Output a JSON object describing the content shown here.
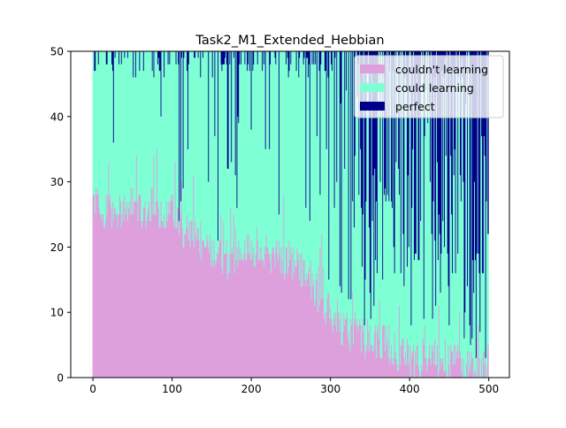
{
  "chart_data": {
    "type": "bar",
    "stacked": true,
    "title": "Task2_M1_Extended_Hebbian",
    "xlabel": "",
    "ylabel": "",
    "xlim": [
      -28,
      526
    ],
    "ylim": [
      0,
      50
    ],
    "xticks": [
      0,
      100,
      200,
      300,
      400,
      500
    ],
    "yticks": [
      0,
      10,
      20,
      30,
      40,
      50
    ],
    "n_bars": 500,
    "legend_position": "upper right",
    "grid": false,
    "colors": {
      "couldnt": "#dda0dd",
      "could": "#7fffd4",
      "perfect": "#00008b"
    },
    "series": [
      {
        "name": "couldn't learning",
        "key": "couldnt"
      },
      {
        "name": "could learning",
        "key": "could"
      },
      {
        "name": "perfect",
        "key": "perfect"
      }
    ],
    "sample_x": [
      0,
      25,
      50,
      75,
      100,
      125,
      150,
      175,
      200,
      225,
      250,
      275,
      300,
      325,
      350,
      375,
      400,
      425,
      450,
      475,
      499
    ],
    "couldnt_trend": [
      27,
      25,
      26,
      26,
      25,
      22,
      19,
      18,
      20,
      19,
      18,
      15,
      10,
      7,
      6,
      5,
      3,
      3,
      3,
      2,
      1
    ],
    "could_trend": [
      22,
      24,
      23,
      22,
      20,
      22,
      23,
      27,
      28,
      30,
      31,
      32,
      33,
      20,
      16,
      15,
      14,
      15,
      13,
      11,
      7
    ],
    "couldnt_variation": 6,
    "perfect_intensity": [
      0.04,
      0.05,
      0.02,
      0.05,
      0.06,
      0.08,
      0.12,
      0.15,
      0.05,
      0.08,
      0.06,
      0.1,
      0.18,
      0.55,
      0.62,
      0.64,
      0.6,
      0.62,
      0.64,
      0.7,
      0.75
    ]
  }
}
